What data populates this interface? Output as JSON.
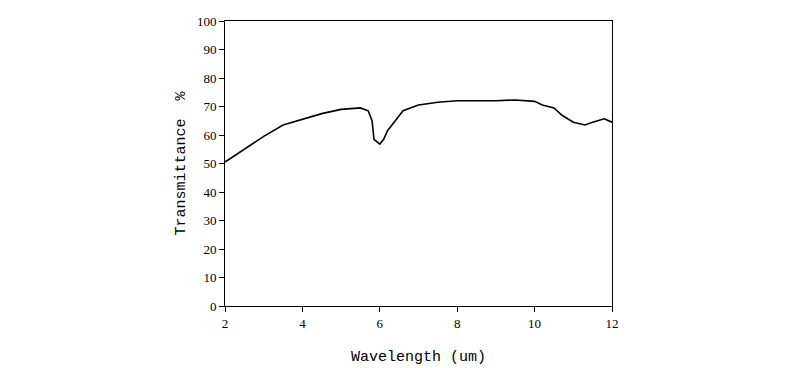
{
  "chart_data": {
    "type": "line",
    "x_label": "Wavelength (um)",
    "y_label": "Transmittance  %",
    "series": [
      {
        "color": "#000000",
        "x": [
          2,
          2.5,
          3,
          3.5,
          4,
          4.5,
          5,
          5.5,
          5.7,
          5.8,
          5.85,
          5.95,
          6.0,
          6.1,
          6.2,
          6.4,
          6.6,
          7,
          7.5,
          8,
          8.5,
          9,
          9.5,
          10,
          10.2,
          10.5,
          10.7,
          11,
          11.3,
          11.5,
          11.8,
          12
        ],
        "values": [
          50.5,
          55,
          59.5,
          63.5,
          65.5,
          67.5,
          69,
          69.5,
          68.5,
          65,
          58.5,
          57.5,
          56.8,
          58.5,
          61.5,
          65,
          68.5,
          70.5,
          71.5,
          72,
          72,
          72,
          72.3,
          71.8,
          70.5,
          69.5,
          67,
          64.5,
          63.5,
          64.5,
          65.7,
          64.5
        ]
      }
    ],
    "xlim": [
      2,
      12
    ],
    "xticks": [
      2,
      4,
      6,
      8,
      10,
      12
    ],
    "ylim": [
      0,
      100
    ],
    "yticks": [
      0,
      10,
      20,
      30,
      40,
      50,
      60,
      70,
      80,
      90,
      100
    ],
    "grid": false
  }
}
